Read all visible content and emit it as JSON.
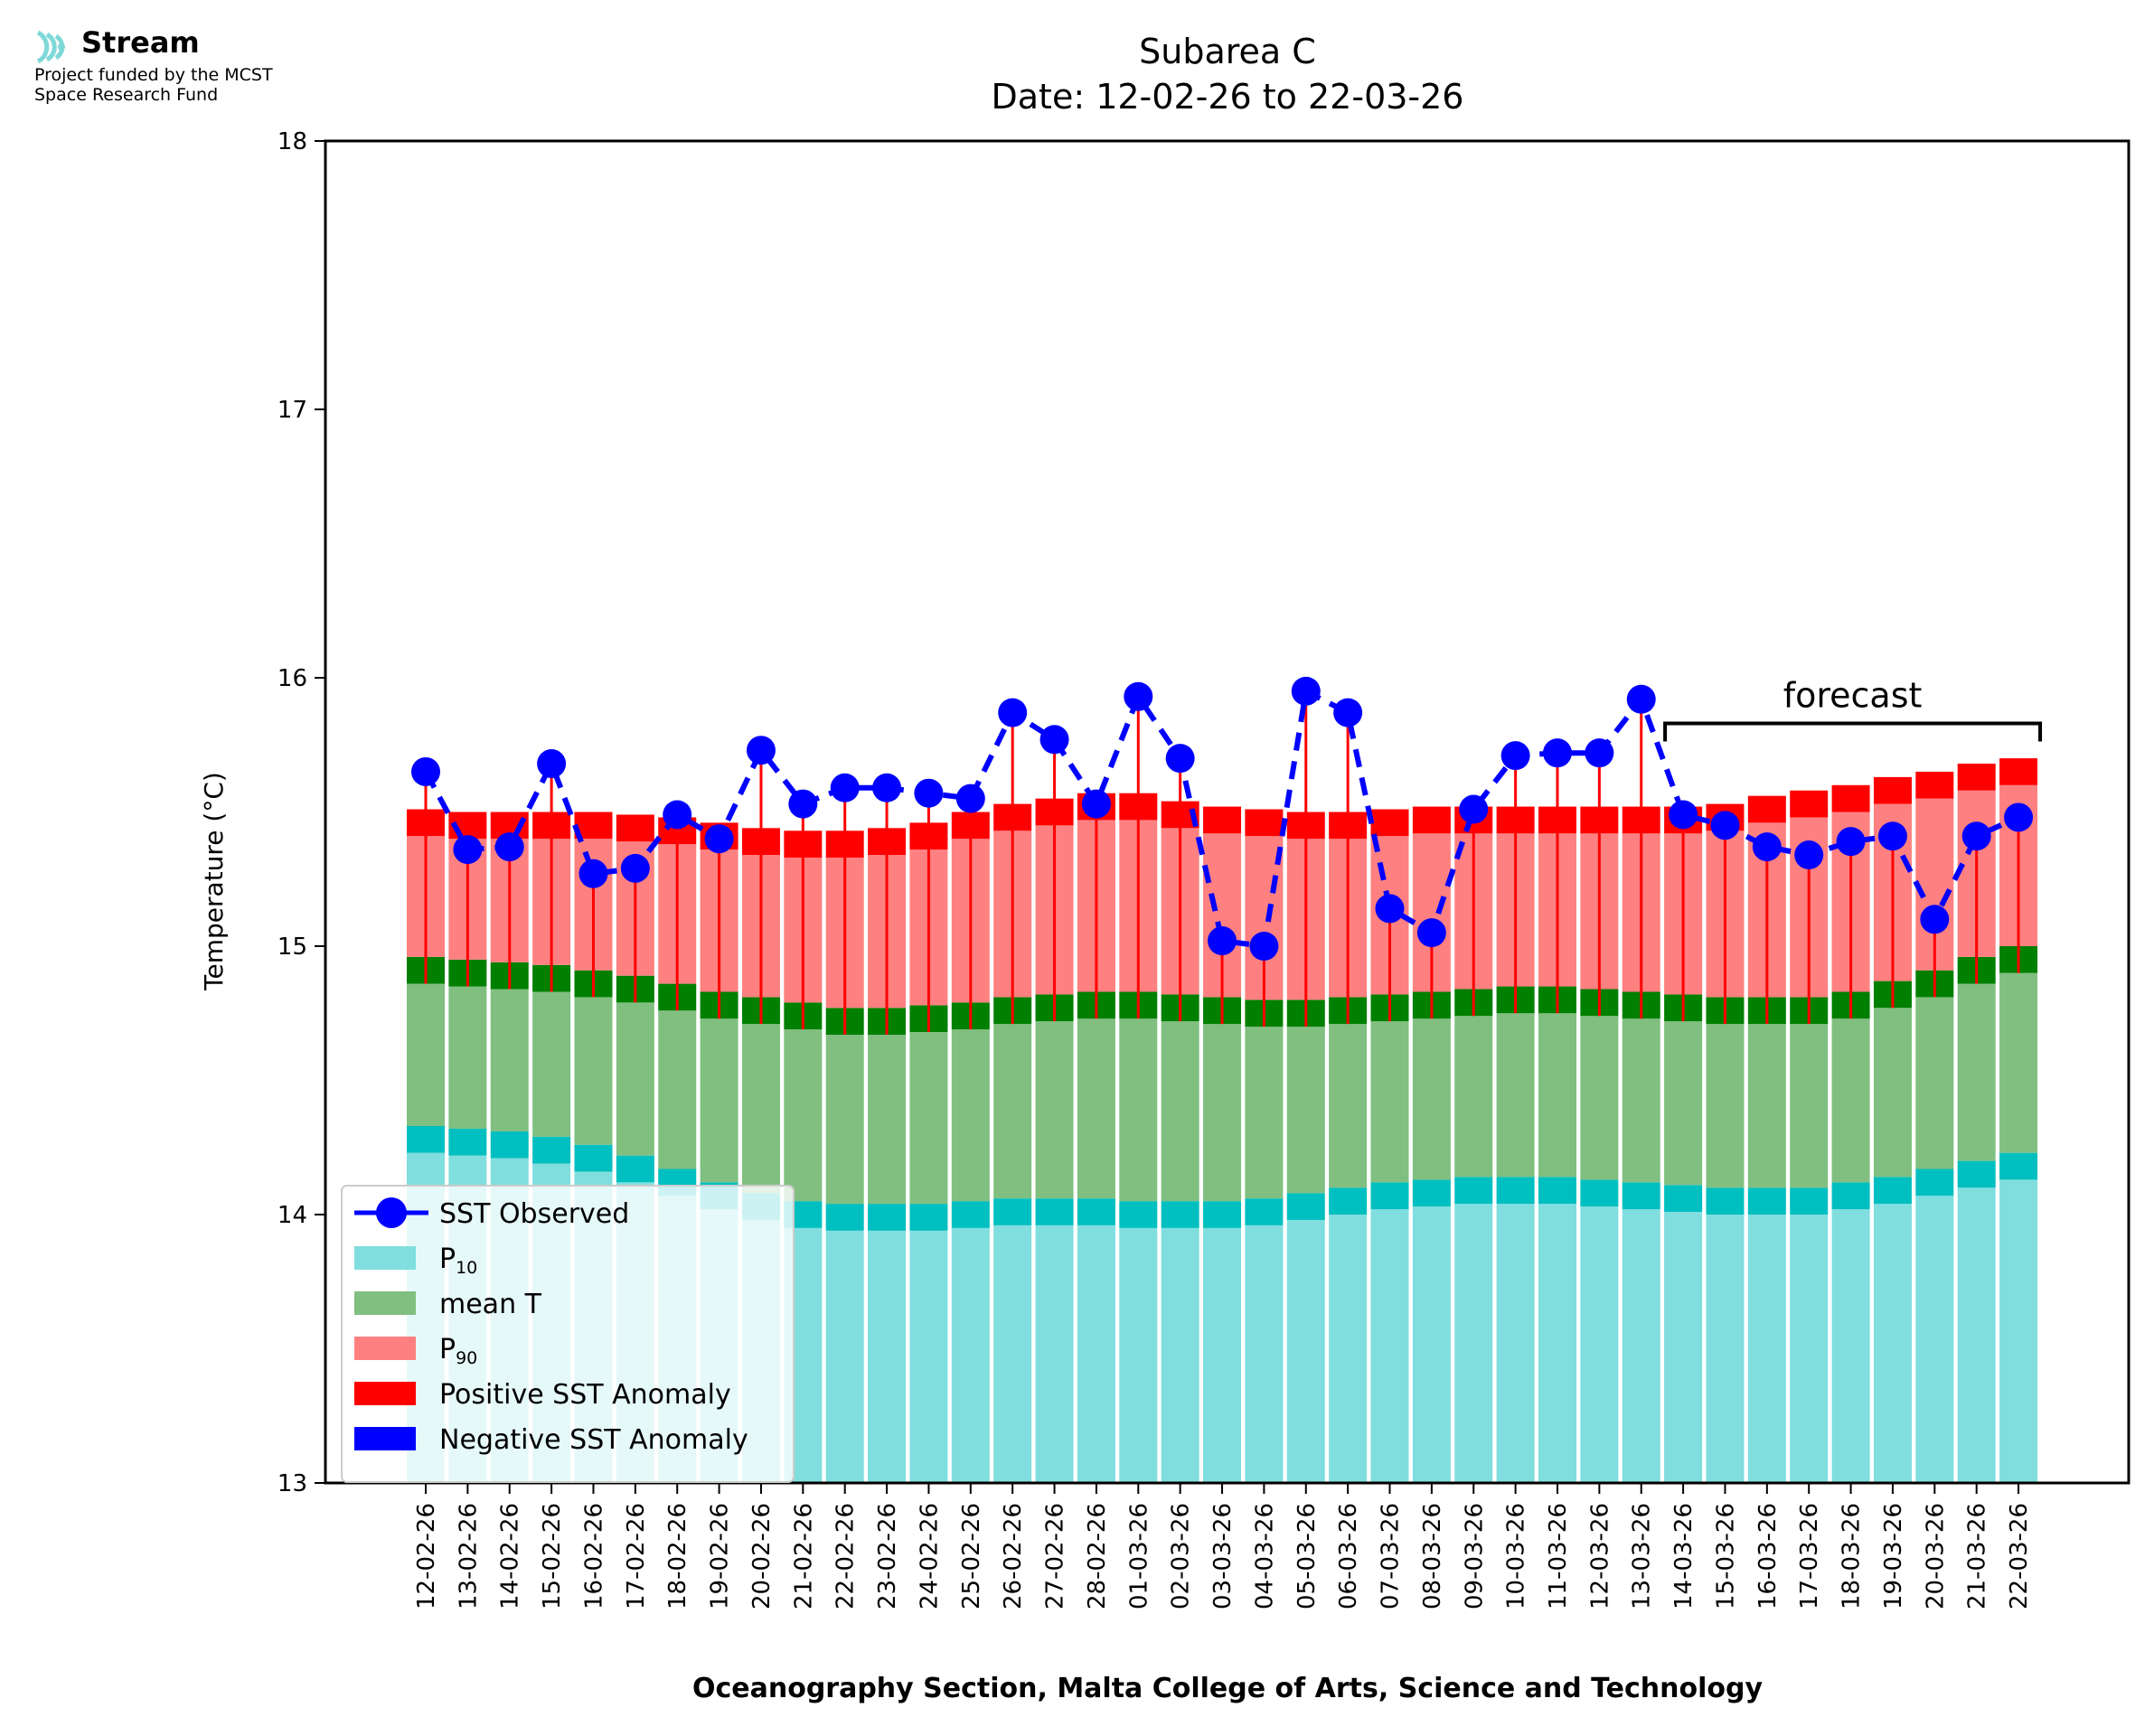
{
  "logo": {
    "name": "Stream",
    "line1": "Project funded by the MCST",
    "line2": "Space Research Fund",
    "color": "#7fd8d8"
  },
  "chart_data": {
    "type": "bar",
    "title": "Subarea C",
    "subtitle": "Date: 12-02-26 to 22-03-26",
    "xlabel": "Oceanography Section, Malta College of Arts, Science and Technology",
    "ylabel": "Temperature (°C)",
    "ylim": [
      13,
      18
    ],
    "yticks": [
      13,
      14,
      15,
      16,
      17,
      18
    ],
    "categories": [
      "12-02-26",
      "13-02-26",
      "14-02-26",
      "15-02-26",
      "16-02-26",
      "17-02-26",
      "18-02-26",
      "19-02-26",
      "20-02-26",
      "21-02-26",
      "22-02-26",
      "23-02-26",
      "24-02-26",
      "25-02-26",
      "26-02-26",
      "27-02-26",
      "28-02-26",
      "01-03-26",
      "02-03-26",
      "03-03-26",
      "04-03-26",
      "05-03-26",
      "06-03-26",
      "07-03-26",
      "08-03-26",
      "09-03-26",
      "10-03-26",
      "11-03-26",
      "12-03-26",
      "13-03-26",
      "14-03-26",
      "15-03-26",
      "16-03-26",
      "17-03-26",
      "18-03-26",
      "19-03-26",
      "20-03-26",
      "21-03-26",
      "22-03-26"
    ],
    "series": [
      {
        "name": "P10",
        "color": "#80dede",
        "edge_color": "#00bfc0",
        "values": [
          14.23,
          14.22,
          14.21,
          14.19,
          14.16,
          14.12,
          14.07,
          14.02,
          13.98,
          13.95,
          13.94,
          13.94,
          13.94,
          13.95,
          13.96,
          13.96,
          13.96,
          13.95,
          13.95,
          13.95,
          13.96,
          13.98,
          14.0,
          14.02,
          14.03,
          14.04,
          14.04,
          14.04,
          14.03,
          14.02,
          14.01,
          14.0,
          14.0,
          14.0,
          14.02,
          14.04,
          14.07,
          14.1,
          14.13
        ]
      },
      {
        "name": "mean T",
        "color": "#80bf80",
        "edge_color": "#007f00",
        "values": [
          14.86,
          14.85,
          14.84,
          14.83,
          14.81,
          14.79,
          14.76,
          14.73,
          14.71,
          14.69,
          14.67,
          14.67,
          14.68,
          14.69,
          14.71,
          14.72,
          14.73,
          14.73,
          14.72,
          14.71,
          14.7,
          14.7,
          14.71,
          14.72,
          14.73,
          14.74,
          14.75,
          14.75,
          14.74,
          14.73,
          14.72,
          14.71,
          14.71,
          14.71,
          14.73,
          14.77,
          14.81,
          14.86,
          14.9
        ]
      },
      {
        "name": "P90",
        "color": "#ff8080",
        "edge_color": "#ff0000",
        "values": [
          15.41,
          15.4,
          15.4,
          15.4,
          15.4,
          15.39,
          15.38,
          15.36,
          15.34,
          15.33,
          15.33,
          15.34,
          15.36,
          15.4,
          15.43,
          15.45,
          15.47,
          15.47,
          15.44,
          15.42,
          15.41,
          15.4,
          15.4,
          15.41,
          15.42,
          15.42,
          15.42,
          15.42,
          15.42,
          15.42,
          15.42,
          15.43,
          15.46,
          15.48,
          15.5,
          15.53,
          15.55,
          15.58,
          15.6
        ]
      },
      {
        "name": "SST Observed",
        "color": "#0000ff",
        "values": [
          15.65,
          15.36,
          15.37,
          15.68,
          15.27,
          15.29,
          15.49,
          15.4,
          15.73,
          15.53,
          15.59,
          15.59,
          15.57,
          15.55,
          15.87,
          15.77,
          15.53,
          15.93,
          15.7,
          15.02,
          15.0,
          15.95,
          15.87,
          15.14,
          15.05,
          15.51,
          15.71,
          15.72,
          15.72,
          15.92,
          15.49,
          15.45,
          15.37,
          15.34,
          15.39,
          15.41,
          15.1,
          15.41,
          15.48
        ]
      }
    ],
    "legend": {
      "placement": "lower-left",
      "entries": [
        {
          "label": "SST Observed",
          "sub": "",
          "color": "#0000ff",
          "kind": "line"
        },
        {
          "label": "P",
          "sub": "10",
          "color": "#80dede",
          "kind": "patch"
        },
        {
          "label": "mean T",
          "sub": "",
          "color": "#80bf80",
          "kind": "patch"
        },
        {
          "label": "P",
          "sub": "90",
          "color": "#ff8080",
          "kind": "patch"
        },
        {
          "label": "Positive SST Anomaly",
          "sub": "",
          "color": "#ff0000",
          "kind": "patch"
        },
        {
          "label": "Negative SST Anomaly",
          "sub": "",
          "color": "#0000ff",
          "kind": "patch"
        }
      ]
    },
    "annotation": {
      "text": "forecast",
      "start_index": 30,
      "end_index": 38,
      "y": 15.83
    },
    "grid": false
  }
}
